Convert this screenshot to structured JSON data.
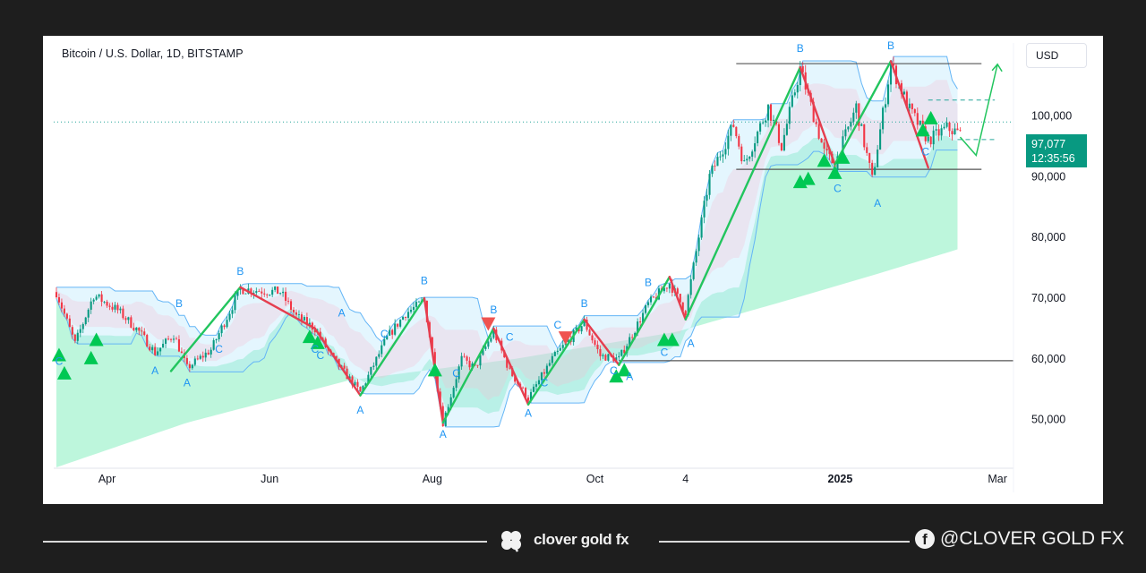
{
  "header": {
    "symbol_title": "Bitcoin / U.S. Dollar, 1D, BITSTAMP",
    "currency": "USD"
  },
  "price_box": {
    "price": "97,077",
    "countdown": "12:35:56",
    "color": "#089981"
  },
  "footer": {
    "brand": "clover gold fx",
    "social_handle": "@CLOVER GOLD FX",
    "brand_icon": "clover-icon",
    "social_icon": "facebook-icon"
  },
  "colors": {
    "bull": "#089981",
    "bear": "#f23645",
    "zigzag_up": "#22c55e",
    "zigzag_down": "#e53e4f",
    "label": "#2196f3",
    "ribbon": "#a7f3d0"
  },
  "chart_data": {
    "type": "candlestick",
    "title": "Bitcoin / U.S. Dollar, 1D, BITSTAMP",
    "xlabel": "",
    "ylabel": "",
    "ylim": [
      42000,
      112000
    ],
    "y_ticks": [
      50000,
      60000,
      70000,
      80000,
      90000,
      100000
    ],
    "y_tick_labels": [
      "50,000",
      "60,000",
      "70,000",
      "80,000",
      "90,000",
      "100,000"
    ],
    "x_ticks": [
      "2024-04-01",
      "2024-06-01",
      "2024-08-01",
      "2024-10-01",
      "2024-11-04",
      "2025-01-01",
      "2025-03-01"
    ],
    "x_tick_labels": [
      "Apr",
      "Jun",
      "Aug",
      "Oct",
      "4",
      "2025",
      "Mar"
    ],
    "x_range": [
      "2024-03-12",
      "2025-03-07"
    ],
    "grid": false,
    "last_price": 97077,
    "path": [
      [
        "2024-03-13",
        71000
      ],
      [
        "2024-03-20",
        62500
      ],
      [
        "2024-03-27",
        70500
      ],
      [
        "2024-04-05",
        68000
      ],
      [
        "2024-04-13",
        64500
      ],
      [
        "2024-04-19",
        61000
      ],
      [
        "2024-04-26",
        64000
      ],
      [
        "2024-05-01",
        58500
      ],
      [
        "2024-05-10",
        61500
      ],
      [
        "2024-05-15",
        66000
      ],
      [
        "2024-05-21",
        71500
      ],
      [
        "2024-06-05",
        71000
      ],
      [
        "2024-06-11",
        67000
      ],
      [
        "2024-06-18",
        65000
      ],
      [
        "2024-06-24",
        60500
      ],
      [
        "2024-07-05",
        54500
      ],
      [
        "2024-07-15",
        63500
      ],
      [
        "2024-07-22",
        67500
      ],
      [
        "2024-07-29",
        69500
      ],
      [
        "2024-08-05",
        49500
      ],
      [
        "2024-08-12",
        60000
      ],
      [
        "2024-08-17",
        58500
      ],
      [
        "2024-08-24",
        64500
      ],
      [
        "2024-08-30",
        58000
      ],
      [
        "2024-09-06",
        53500
      ],
      [
        "2024-09-15",
        60000
      ],
      [
        "2024-09-27",
        66000
      ],
      [
        "2024-10-03",
        60500
      ],
      [
        "2024-10-10",
        60000
      ],
      [
        "2024-10-21",
        69000
      ],
      [
        "2024-10-29",
        72500
      ],
      [
        "2024-11-04",
        67800
      ],
      [
        "2024-11-13",
        90000
      ],
      [
        "2024-11-22",
        98500
      ],
      [
        "2024-11-26",
        92000
      ],
      [
        "2024-12-05",
        101500
      ],
      [
        "2024-12-10",
        95000
      ],
      [
        "2024-12-17",
        107800
      ],
      [
        "2024-12-26",
        94000
      ],
      [
        "2024-12-30",
        92000
      ],
      [
        "2025-01-07",
        101500
      ],
      [
        "2025-01-13",
        89500
      ],
      [
        "2025-01-20",
        108500
      ],
      [
        "2025-01-27",
        101000
      ],
      [
        "2025-02-03",
        96000
      ],
      [
        "2025-02-10",
        98000
      ],
      [
        "2025-02-15",
        97077
      ]
    ],
    "zigzag": [
      [
        "2024-04-25",
        58000,
        "up"
      ],
      [
        "2024-05-21",
        71800,
        "down"
      ],
      [
        "2024-06-18",
        65000,
        "down"
      ],
      [
        "2024-07-05",
        54000,
        "up"
      ],
      [
        "2024-07-29",
        70000,
        "down"
      ],
      [
        "2024-08-05",
        49500,
        "up"
      ],
      [
        "2024-08-24",
        65000,
        "down"
      ],
      [
        "2024-09-06",
        52500,
        "up"
      ],
      [
        "2024-09-27",
        66500,
        "down"
      ],
      [
        "2024-10-10",
        59000,
        "up"
      ],
      [
        "2024-10-29",
        73500,
        "down"
      ],
      [
        "2024-11-04",
        66500,
        "up"
      ],
      [
        "2024-12-17",
        108000,
        "down"
      ],
      [
        "2024-12-30",
        92000,
        "up"
      ],
      [
        "2025-01-20",
        109000,
        "down"
      ],
      [
        "2025-02-03",
        91500,
        "none"
      ]
    ],
    "pattern_labels": [
      {
        "text": "B",
        "date": "2024-05-21",
        "price": 73800
      },
      {
        "text": "B",
        "date": "2024-07-29",
        "price": 72300
      },
      {
        "text": "B",
        "date": "2024-08-24",
        "price": 67500
      },
      {
        "text": "B",
        "date": "2024-09-27",
        "price": 68500
      },
      {
        "text": "B",
        "date": "2024-10-21",
        "price": 72000
      },
      {
        "text": "B",
        "date": "2024-12-17",
        "price": 110500
      },
      {
        "text": "B",
        "date": "2025-01-20",
        "price": 111000
      },
      {
        "text": "B",
        "date": "2024-04-28",
        "price": 68500
      },
      {
        "text": "A",
        "date": "2024-04-19",
        "price": 57500
      },
      {
        "text": "A",
        "date": "2024-05-01",
        "price": 55500
      },
      {
        "text": "A",
        "date": "2024-06-28",
        "price": 67000
      },
      {
        "text": "A",
        "date": "2024-07-05",
        "price": 51000
      },
      {
        "text": "A",
        "date": "2024-08-05",
        "price": 47000
      },
      {
        "text": "A",
        "date": "2024-09-06",
        "price": 50500
      },
      {
        "text": "A",
        "date": "2024-10-14",
        "price": 56500
      },
      {
        "text": "A",
        "date": "2024-11-06",
        "price": 62000
      },
      {
        "text": "A",
        "date": "2025-01-15",
        "price": 85000
      },
      {
        "text": "C",
        "date": "2024-03-14",
        "price": 59000
      },
      {
        "text": "C",
        "date": "2024-05-13",
        "price": 61000
      },
      {
        "text": "C",
        "date": "2024-06-18",
        "price": 61000
      },
      {
        "text": "C",
        "date": "2024-06-20",
        "price": 60000
      },
      {
        "text": "C",
        "date": "2024-07-14",
        "price": 63500
      },
      {
        "text": "C",
        "date": "2024-08-10",
        "price": 57000
      },
      {
        "text": "C",
        "date": "2024-08-30",
        "price": 63000
      },
      {
        "text": "C",
        "date": "2024-09-12",
        "price": 55500
      },
      {
        "text": "C",
        "date": "2024-09-17",
        "price": 65000
      },
      {
        "text": "C",
        "date": "2024-10-08",
        "price": 57500
      },
      {
        "text": "C",
        "date": "2024-10-27",
        "price": 60500
      },
      {
        "text": "C",
        "date": "2024-12-31",
        "price": 87500
      },
      {
        "text": "C",
        "date": "2025-02-02",
        "price": 93500
      }
    ],
    "buy_signals": [
      [
        "2024-03-14",
        60500
      ],
      [
        "2024-03-16",
        57500
      ],
      [
        "2024-03-26",
        60000
      ],
      [
        "2024-03-28",
        63000
      ],
      [
        "2024-06-16",
        63500
      ],
      [
        "2024-06-19",
        62500
      ],
      [
        "2024-08-02",
        58000
      ],
      [
        "2024-10-09",
        57000
      ],
      [
        "2024-10-12",
        58000
      ],
      [
        "2024-10-27",
        63000
      ],
      [
        "2024-10-30",
        63000
      ],
      [
        "2024-12-17",
        89000
      ],
      [
        "2024-12-20",
        89500
      ],
      [
        "2024-12-26",
        92500
      ],
      [
        "2024-12-30",
        90500
      ],
      [
        "2025-01-02",
        93000
      ],
      [
        "2025-02-01",
        97500
      ],
      [
        "2025-02-04",
        99500
      ]
    ],
    "sell_signals": [
      [
        "2024-08-22",
        65800
      ],
      [
        "2024-09-20",
        63500
      ]
    ],
    "horizontal_levels": [
      {
        "price": 59700,
        "from": "2024-10-10",
        "to": "2025-03-07",
        "style": "solid",
        "color": "#555555"
      },
      {
        "price": 108600,
        "from": "2024-11-23",
        "to": "2025-02-23",
        "style": "solid",
        "color": "#555555"
      },
      {
        "price": 91200,
        "from": "2024-11-23",
        "to": "2025-02-23",
        "style": "solid",
        "color": "#555555"
      },
      {
        "price": 102600,
        "from": "2025-02-03",
        "to": "2025-02-28",
        "style": "dashed",
        "color": "#26a69a"
      },
      {
        "price": 96100,
        "from": "2025-02-14",
        "to": "2025-02-28",
        "style": "dashed",
        "color": "#26a69a"
      },
      {
        "price": 99000,
        "from": "2024-03-12",
        "to": "2025-03-07",
        "style": "dotted",
        "color": "#26a69a"
      }
    ],
    "projection": [
      [
        "2025-02-15",
        96500
      ],
      [
        "2025-02-21",
        93500
      ],
      [
        "2025-03-01",
        108500
      ]
    ],
    "ribbon_lower": [
      [
        "2024-03-12",
        42000
      ],
      [
        "2024-05-01",
        49500
      ],
      [
        "2024-07-01",
        56500
      ],
      [
        "2024-09-01",
        60000
      ],
      [
        "2024-11-01",
        64500
      ],
      [
        "2024-12-15",
        70000
      ],
      [
        "2025-01-15",
        74000
      ],
      [
        "2025-02-25",
        79500
      ]
    ]
  }
}
